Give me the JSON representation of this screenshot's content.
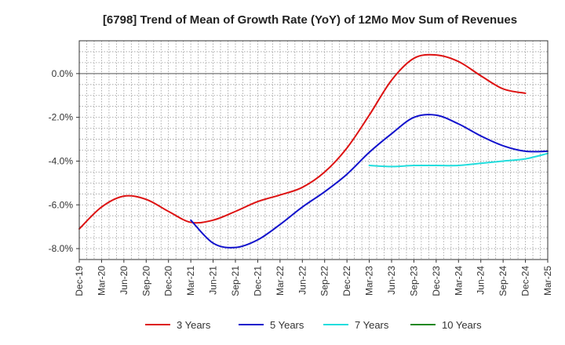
{
  "chart_data": {
    "type": "line",
    "title": "[6798]  Trend of Mean of Growth Rate (YoY) of 12Mo Mov Sum of Revenues",
    "xlabel": "",
    "ylabel": "",
    "ylim": [
      -8.5,
      1.5
    ],
    "y_ticks": [
      0,
      -2,
      -4,
      -6,
      -8
    ],
    "y_tick_labels": [
      "0.0%",
      "-2.0%",
      "-4.0%",
      "-6.0%",
      "-8.0%"
    ],
    "x_tick_labels": [
      "Dec-19",
      "Mar-20",
      "Jun-20",
      "Sep-20",
      "Dec-20",
      "Mar-21",
      "Jun-21",
      "Sep-21",
      "Dec-21",
      "Mar-22",
      "Jun-22",
      "Sep-22",
      "Dec-22",
      "Mar-23",
      "Jun-23",
      "Sep-23",
      "Dec-23",
      "Mar-24",
      "Jun-24",
      "Sep-24",
      "Dec-24",
      "Mar-25"
    ],
    "grid": true,
    "legend_position": "bottom",
    "series": [
      {
        "name": "3 Years",
        "color": "#dd1111",
        "start_quarter": 0,
        "values": [
          -7.1,
          -6.1,
          -5.6,
          -5.75,
          -6.3,
          -6.8,
          -6.7,
          -6.3,
          -5.85,
          -5.55,
          -5.2,
          -4.5,
          -3.4,
          -1.9,
          -0.3,
          0.7,
          0.85,
          0.55,
          -0.1,
          -0.7,
          -0.9
        ]
      },
      {
        "name": "5 Years",
        "color": "#1111cc",
        "start_quarter": 5,
        "values": [
          -6.7,
          -7.75,
          -7.95,
          -7.6,
          -6.9,
          -6.1,
          -5.4,
          -4.6,
          -3.6,
          -2.75,
          -2.0,
          -1.9,
          -2.3,
          -2.85,
          -3.3,
          -3.55,
          -3.55
        ]
      },
      {
        "name": "7 Years",
        "color": "#22dddd",
        "start_quarter": 13,
        "values": [
          -4.2,
          -4.25,
          -4.2,
          -4.2,
          -4.2,
          -4.1,
          -4.0,
          -3.9,
          -3.65
        ]
      },
      {
        "name": "10 Years",
        "color": "#228822",
        "start_quarter": 0,
        "values": []
      }
    ]
  }
}
